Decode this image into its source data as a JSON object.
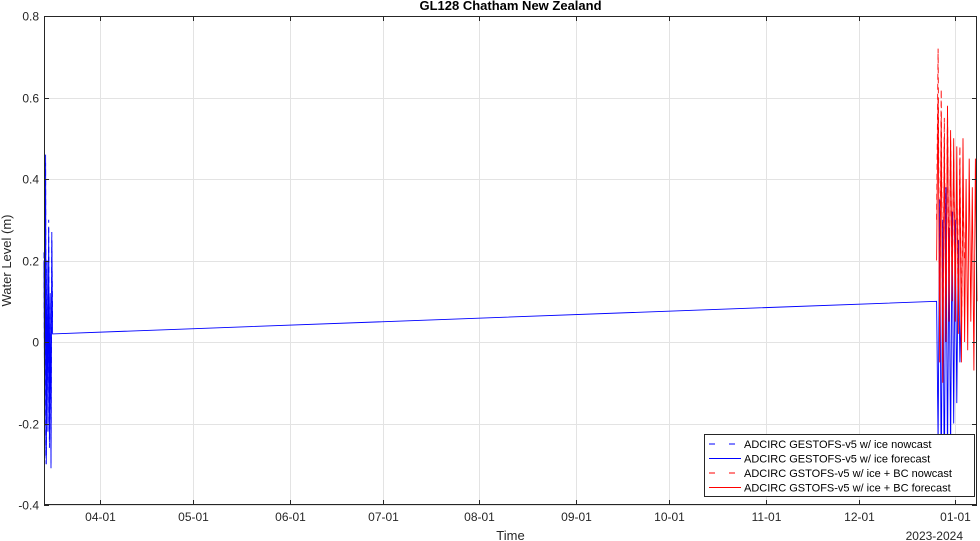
{
  "chart_data": {
    "type": "line",
    "title": "GL128 Chatham New Zealand",
    "xlabel": "Time",
    "ylabel": "Water Level (m)",
    "x_year_label": "2023-2024",
    "x_range": [
      "2023-03-14",
      "2024-01-08"
    ],
    "ylim": [
      -0.4,
      0.8
    ],
    "yticks": [
      -0.4,
      -0.2,
      0,
      0.2,
      0.4,
      0.6,
      0.8
    ],
    "ytick_labels": [
      "-0.4",
      "-0.2",
      "0",
      "0.2",
      "0.4",
      "0.6",
      "0.8"
    ],
    "xticks": [
      {
        "date": "2023-04-01",
        "label": "04-01"
      },
      {
        "date": "2023-05-01",
        "label": "05-01"
      },
      {
        "date": "2023-06-01",
        "label": "06-01"
      },
      {
        "date": "2023-07-01",
        "label": "07-01"
      },
      {
        "date": "2023-08-01",
        "label": "08-01"
      },
      {
        "date": "2023-09-01",
        "label": "09-01"
      },
      {
        "date": "2023-10-01",
        "label": "10-01"
      },
      {
        "date": "2023-11-01",
        "label": "11-01"
      },
      {
        "date": "2023-12-01",
        "label": "12-01"
      },
      {
        "date": "2024-01-01",
        "label": "01-01"
      }
    ],
    "grid": true,
    "legend_position": "bottom-right",
    "series": [
      {
        "name": "ADCIRC GESTOFS-v5 w/ ice nowcast",
        "color": "#0000ff",
        "style": "dashed",
        "x": [
          "2023-03-14T00:00",
          "2023-03-14T06:00",
          "2023-03-14T12:00",
          "2023-03-14T18:00",
          "2023-03-15T00:00",
          "2023-03-15T06:00",
          "2023-03-15T12:00",
          "2023-03-15T18:00",
          "2023-03-16T00:00",
          "2023-03-16T06:00",
          "2023-03-16T12:00",
          "2023-03-16T18:00"
        ],
        "y": [
          0.22,
          -0.3,
          0.44,
          -0.28,
          0.18,
          -0.2,
          0.3,
          -0.26,
          0.1,
          -0.31,
          0.27,
          0.05
        ]
      },
      {
        "name": "ADCIRC GESTOFS-v5 w/ ice forecast",
        "color": "#0000ff",
        "style": "solid",
        "x": [
          "2023-03-14T00:00",
          "2023-03-14T06:00",
          "2023-03-14T12:00",
          "2023-03-14T18:00",
          "2023-03-15T00:00",
          "2023-03-15T06:00",
          "2023-03-15T12:00",
          "2023-03-15T18:00",
          "2023-03-16T00:00",
          "2023-03-16T06:00",
          "2023-03-16T12:00",
          "2023-03-16T18:00",
          "2023-12-26T00:00",
          "2023-12-26T12:00",
          "2023-12-27T00:00",
          "2023-12-27T12:00",
          "2023-12-28T00:00",
          "2023-12-28T12:00",
          "2023-12-29T00:00",
          "2023-12-29T12:00",
          "2023-12-30T00:00",
          "2023-12-30T12:00",
          "2023-12-31T00:00",
          "2023-12-31T12:00",
          "2024-01-01T00:00",
          "2024-01-01T12:00",
          "2024-01-02T00:00",
          "2024-01-02T12:00",
          "2024-01-03T00:00"
        ],
        "y": [
          0.2,
          -0.28,
          0.46,
          -0.3,
          0.2,
          -0.22,
          0.28,
          -0.24,
          0.12,
          -0.3,
          0.25,
          0.02,
          0.1,
          -0.25,
          0.35,
          -0.35,
          0.3,
          -0.38,
          0.38,
          -0.3,
          0.28,
          -0.28,
          0.32,
          -0.2,
          0.3,
          -0.15,
          0.25,
          -0.05,
          0.1
        ]
      },
      {
        "name": "ADCIRC GSTOFS-v5 w/ ice + BC nowcast",
        "color": "#ff0000",
        "style": "dashed",
        "x": [
          "2023-12-26T00:00",
          "2023-12-26T12:00",
          "2023-12-27T00:00",
          "2023-12-27T12:00",
          "2023-12-28T00:00",
          "2023-12-28T12:00",
          "2023-12-29T00:00",
          "2023-12-29T12:00",
          "2023-12-30T00:00",
          "2023-12-30T12:00",
          "2023-12-31T00:00",
          "2023-12-31T12:00",
          "2024-01-01T00:00",
          "2024-01-01T12:00",
          "2024-01-02T00:00",
          "2024-01-02T12:00",
          "2024-01-03T00:00",
          "2024-01-03T12:00",
          "2024-01-04T00:00"
        ],
        "y": [
          0.3,
          0.72,
          0.0,
          0.62,
          -0.05,
          0.55,
          0.02,
          0.58,
          0.1,
          0.5,
          0.12,
          0.45,
          0.15,
          0.4,
          0.05,
          0.48,
          0.0,
          0.35,
          0.2
        ]
      },
      {
        "name": "ADCIRC GSTOFS-v5 w/ ice + BC forecast",
        "color": "#ff0000",
        "style": "solid",
        "x": [
          "2023-12-26T00:00",
          "2023-12-26T12:00",
          "2023-12-27T00:00",
          "2023-12-27T12:00",
          "2023-12-28T00:00",
          "2023-12-28T12:00",
          "2023-12-29T00:00",
          "2023-12-29T12:00",
          "2023-12-30T00:00",
          "2023-12-30T12:00",
          "2023-12-31T00:00",
          "2023-12-31T12:00",
          "2024-01-01T00:00",
          "2024-01-01T12:00",
          "2024-01-02T00:00",
          "2024-01-02T12:00",
          "2024-01-03T00:00",
          "2024-01-03T12:00",
          "2024-01-04T00:00",
          "2024-01-04T12:00",
          "2024-01-05T00:00",
          "2024-01-05T12:00",
          "2024-01-06T00:00",
          "2024-01-06T12:00",
          "2024-01-07T00:00",
          "2024-01-07T12:00",
          "2024-01-08T00:00"
        ],
        "y": [
          0.2,
          0.6,
          -0.05,
          0.55,
          -0.1,
          0.5,
          0.0,
          0.58,
          0.05,
          0.52,
          0.1,
          0.5,
          0.05,
          0.48,
          0.02,
          0.45,
          -0.05,
          0.5,
          0.0,
          0.4,
          -0.02,
          0.45,
          0.05,
          0.38,
          -0.07,
          0.45,
          0.1
        ]
      }
    ]
  }
}
